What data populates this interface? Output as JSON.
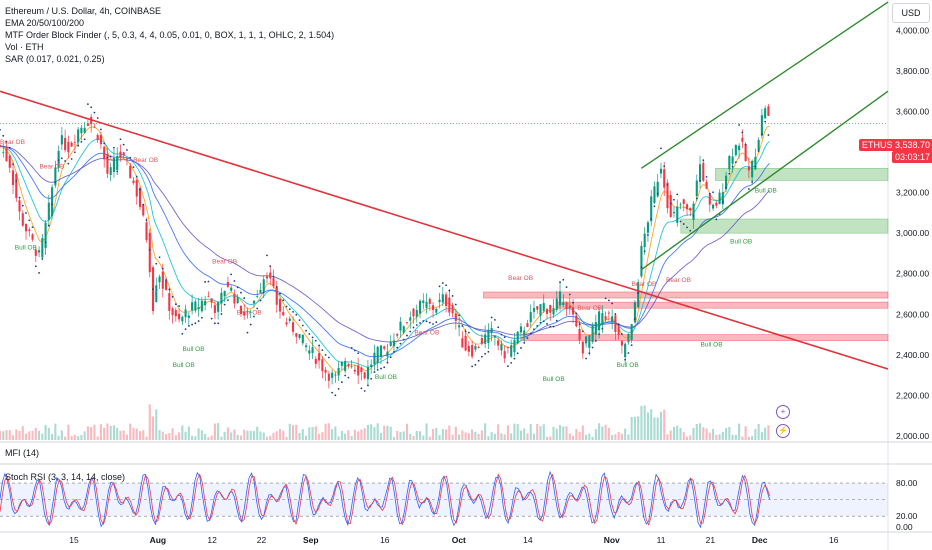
{
  "header": {
    "title": "Ethereum / U.S. Dollar, 4h, COINBASE",
    "indicators": [
      "EMA 20/50/100/200",
      "MTF Order Block Finder (, 5, 0.3, 4, 4, 0.05, 0.01, 0, BOX, 1, 1, 1, OHLC, 2, 1.504)",
      "Vol · ETH",
      "SAR (0.017, 0.021, 0.25)"
    ],
    "currency_button": "USD"
  },
  "price_badge": {
    "symbol": "ETHUSD",
    "price": "3,538.70",
    "countdown": "03:03:17"
  },
  "panels": {
    "mfi_label": "MFI (14)",
    "stoch_label": "Stoch RSI (3, 3, 14, 14, close)"
  },
  "colors": {
    "up": "#089981",
    "down": "#f23645",
    "trendline_red": "#e0343b",
    "channel_green": "#2e8b2e",
    "ema20": "#ff9800",
    "ema50": "#00bcd4",
    "ema100": "#2962ff",
    "ema200": "#5b4ec4",
    "sar": "#1e3a8a",
    "stoch_k": "#2962ff",
    "stoch_d": "#f23645",
    "bull_zone": "#4caf50",
    "bear_zone": "#f23645"
  },
  "chart_data": [
    {
      "type": "line",
      "chart": "candlestick price",
      "y_ticks": [
        "4,000.00",
        "3,800.00",
        "3,600.00",
        "3,400.00",
        "3,200.00",
        "3,000.00",
        "2,800.00",
        "2,600.00",
        "2,400.00",
        "2,200.00",
        "2,000.00"
      ],
      "y_tick_values": [
        4000,
        3800,
        3600,
        3400,
        3200,
        3000,
        2800,
        2600,
        2400,
        2200,
        2000
      ],
      "ylim": [
        1980,
        4150
      ],
      "x_ticks": [
        "15",
        "Aug",
        "12",
        "22",
        "Sep",
        "16",
        "Oct",
        "14",
        "Nov",
        "11",
        "21",
        "Dec",
        "16"
      ],
      "x_tick_days": [
        15,
        32,
        43,
        53,
        63,
        78,
        93,
        107,
        124,
        134,
        144,
        154,
        169
      ],
      "xlim": [
        0,
        180
      ],
      "close_series": [
        [
          0,
          3430
        ],
        [
          2,
          3340
        ],
        [
          4,
          3090
        ],
        [
          6,
          2980
        ],
        [
          8,
          2880
        ],
        [
          10,
          3130
        ],
        [
          12,
          3460
        ],
        [
          14,
          3420
        ],
        [
          16,
          3520
        ],
        [
          18,
          3560
        ],
        [
          20,
          3480
        ],
        [
          22,
          3270
        ],
        [
          24,
          3400
        ],
        [
          26,
          3320
        ],
        [
          28,
          3180
        ],
        [
          30,
          2950
        ],
        [
          31,
          2640
        ],
        [
          32,
          2830
        ],
        [
          34,
          2660
        ],
        [
          36,
          2550
        ],
        [
          38,
          2620
        ],
        [
          40,
          2640
        ],
        [
          42,
          2690
        ],
        [
          44,
          2620
        ],
        [
          46,
          2760
        ],
        [
          48,
          2660
        ],
        [
          50,
          2580
        ],
        [
          52,
          2700
        ],
        [
          54,
          2820
        ],
        [
          56,
          2660
        ],
        [
          58,
          2560
        ],
        [
          60,
          2520
        ],
        [
          62,
          2440
        ],
        [
          64,
          2390
        ],
        [
          66,
          2320
        ],
        [
          68,
          2280
        ],
        [
          70,
          2380
        ],
        [
          72,
          2340
        ],
        [
          74,
          2300
        ],
        [
          76,
          2400
        ],
        [
          78,
          2420
        ],
        [
          80,
          2500
        ],
        [
          82,
          2560
        ],
        [
          84,
          2620
        ],
        [
          86,
          2650
        ],
        [
          88,
          2630
        ],
        [
          90,
          2680
        ],
        [
          92,
          2600
        ],
        [
          94,
          2440
        ],
        [
          96,
          2420
        ],
        [
          98,
          2480
        ],
        [
          100,
          2510
        ],
        [
          102,
          2400
        ],
        [
          104,
          2450
        ],
        [
          106,
          2530
        ],
        [
          108,
          2600
        ],
        [
          110,
          2650
        ],
        [
          112,
          2610
        ],
        [
          114,
          2700
        ],
        [
          116,
          2590
        ],
        [
          118,
          2430
        ],
        [
          120,
          2510
        ],
        [
          122,
          2610
        ],
        [
          124,
          2580
        ],
        [
          126,
          2420
        ],
        [
          128,
          2520
        ],
        [
          130,
          2910
        ],
        [
          132,
          3150
        ],
        [
          134,
          3340
        ],
        [
          136,
          3060
        ],
        [
          138,
          3140
        ],
        [
          140,
          3090
        ],
        [
          142,
          3350
        ],
        [
          144,
          3100
        ],
        [
          146,
          3180
        ],
        [
          148,
          3390
        ],
        [
          150,
          3460
        ],
        [
          152,
          3280
        ],
        [
          154,
          3510
        ],
        [
          155,
          3640
        ],
        [
          156,
          3540
        ]
      ],
      "trendline_red": [
        [
          0,
          3700
        ],
        [
          180,
          2330
        ]
      ],
      "channel_upper": [
        [
          130,
          3320
        ],
        [
          180,
          4140
        ]
      ],
      "channel_lower": [
        [
          130,
          2820
        ],
        [
          180,
          3700
        ]
      ],
      "order_blocks": [
        {
          "type": "bull",
          "label": "Bull OB",
          "low": 3260,
          "high": 3320,
          "from_day": 145
        },
        {
          "type": "bull",
          "label": "Bull OB",
          "low": 3000,
          "high": 3070,
          "from_day": 138
        },
        {
          "type": "bear",
          "label": "Bear OB",
          "low": 2680,
          "high": 2710,
          "from_day": 98
        },
        {
          "type": "bear",
          "label": "Bear OB",
          "low": 2630,
          "high": 2660,
          "from_day": 113
        },
        {
          "type": "bear",
          "label": "Bear OB",
          "low": 2470,
          "high": 2500,
          "from_day": 106
        }
      ],
      "ob_tags": [
        {
          "t": "Bear OB",
          "day": 0,
          "price": 3440,
          "type": "bear"
        },
        {
          "t": "Bear OB",
          "day": 8,
          "price": 3320,
          "type": "bear"
        },
        {
          "t": "Bear OB",
          "day": 27,
          "price": 3350,
          "type": "bear"
        },
        {
          "t": "Bull OB",
          "day": 3,
          "price": 2920,
          "type": "bull"
        },
        {
          "t": "Bear OB",
          "day": 48,
          "price": 2600,
          "type": "bear"
        },
        {
          "t": "Bear OB",
          "day": 43,
          "price": 2850,
          "type": "bear"
        },
        {
          "t": "Bull OB",
          "day": 37,
          "price": 2420,
          "type": "bull"
        },
        {
          "t": "Bull OB",
          "day": 35,
          "price": 2340,
          "type": "bull"
        },
        {
          "t": "Bear OB",
          "day": 84,
          "price": 2500,
          "type": "bear"
        },
        {
          "t": "Bull OB",
          "day": 76,
          "price": 2280,
          "type": "bull"
        },
        {
          "t": "Bear OB",
          "day": 103,
          "price": 2770,
          "type": "bear"
        },
        {
          "t": "Bear OB",
          "day": 117,
          "price": 2620,
          "type": "bear"
        },
        {
          "t": "Bull OB",
          "day": 110,
          "price": 2270,
          "type": "bull"
        },
        {
          "t": "Bull OB",
          "day": 125,
          "price": 2340,
          "type": "bull"
        },
        {
          "t": "Bear OB",
          "day": 135,
          "price": 2760,
          "type": "bear"
        },
        {
          "t": "Bull OB",
          "day": 142,
          "price": 2440,
          "type": "bull"
        },
        {
          "t": "Bear OB",
          "day": 128,
          "price": 2740,
          "type": "bear"
        },
        {
          "t": "Bull OB",
          "day": 148,
          "price": 2950,
          "type": "bull"
        },
        {
          "t": "Bull OB",
          "day": 153,
          "price": 3200,
          "type": "bull"
        }
      ]
    },
    {
      "type": "line",
      "chart": "stochastic rsi",
      "y_ticks": [
        "80.00",
        "20.00",
        "0.00"
      ],
      "y_tick_values": [
        80,
        20,
        0
      ],
      "ylim": [
        -5,
        100
      ],
      "band": [
        20,
        80
      ]
    }
  ]
}
